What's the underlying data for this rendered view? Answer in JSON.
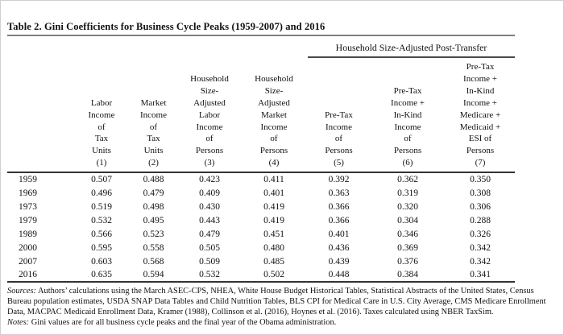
{
  "title": "Table 2. Gini Coefficients for Business Cycle Peaks (1959-2007) and 2016",
  "table": {
    "spanning_header": "Household Size-Adjusted Post-Transfer",
    "col_headers": [
      "Labor\nIncome\nof\nTax\nUnits\n(1)",
      "Market\nIncome\nof\nTax\nUnits\n(2)",
      "Household\nSize-\nAdjusted\nLabor\nIncome\nof\nPersons\n(3)",
      "Household\nSize-\nAdjusted\nMarket\nIncome\nof\nPersons\n(4)",
      "Pre-Tax\nIncome\nof\nPersons\n(5)",
      "Pre-Tax\nIncome +\nIn-Kind\nIncome\nof\nPersons\n(6)",
      "Pre-Tax\nIncome +\nIn-Kind\nIncome +\nMedicare +\nMedicaid +\nESI of\nPersons\n(7)"
    ],
    "rows": [
      {
        "year": "1959",
        "values": [
          "0.507",
          "0.488",
          "0.423",
          "0.411",
          "0.392",
          "0.362",
          "0.350"
        ]
      },
      {
        "year": "1969",
        "values": [
          "0.496",
          "0.479",
          "0.409",
          "0.401",
          "0.363",
          "0.319",
          "0.308"
        ]
      },
      {
        "year": "1973",
        "values": [
          "0.519",
          "0.498",
          "0.430",
          "0.419",
          "0.366",
          "0.320",
          "0.306"
        ]
      },
      {
        "year": "1979",
        "values": [
          "0.532",
          "0.495",
          "0.443",
          "0.419",
          "0.366",
          "0.304",
          "0.288"
        ]
      },
      {
        "year": "1989",
        "values": [
          "0.566",
          "0.523",
          "0.479",
          "0.451",
          "0.401",
          "0.346",
          "0.326"
        ]
      },
      {
        "year": "2000",
        "values": [
          "0.595",
          "0.558",
          "0.505",
          "0.480",
          "0.436",
          "0.369",
          "0.342"
        ]
      },
      {
        "year": "2007",
        "values": [
          "0.603",
          "0.568",
          "0.509",
          "0.485",
          "0.439",
          "0.376",
          "0.342"
        ]
      },
      {
        "year": "2016",
        "values": [
          "0.635",
          "0.594",
          "0.532",
          "0.502",
          "0.448",
          "0.384",
          "0.341"
        ]
      }
    ]
  },
  "footnotes": {
    "sources_label": "Sources:",
    "sources_text": " Authors’ calculations using the March ASEC-CPS, NHEA, White House Budget Historical Tables, Statistical Abstracts of the United States, Census Bureau population estimates, USDA SNAP Data Tables and Child Nutrition Tables, BLS CPI for Medical Care in U.S. City Average, CMS Medicare Enrollment Data, MACPAC Medicaid Enrollment Data, Kramer (1988), Collinson et al. (2016), Hoynes et al. (2016). Taxes calculated using NBER TaxSim.",
    "notes_label": "Notes:",
    "notes_text": " Gini values are for all business cycle peaks and the final year of the Obama administration."
  }
}
